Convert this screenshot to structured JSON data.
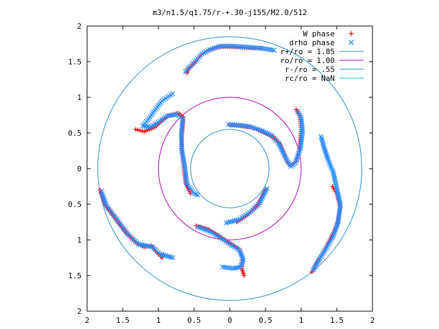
{
  "chart_data": {
    "type": "scatter",
    "title": "m3/n1.5/q1.75/r-+.30-j155/M2.0/512",
    "xlabel": "",
    "ylabel": "",
    "xlim": [
      -2,
      2
    ],
    "ylim": [
      -2,
      2
    ],
    "x_ticks": [
      -2,
      -1.5,
      -1,
      -0.5,
      0,
      0.5,
      1,
      1.5,
      2
    ],
    "y_ticks": [
      -2,
      -1.5,
      -1,
      -0.5,
      0,
      0.5,
      1,
      1.5,
      2
    ],
    "x_tick_labels": [
      "2",
      "1.5",
      "1",
      "0.5",
      "0",
      "0.5",
      "1",
      "1.5",
      "2"
    ],
    "y_tick_labels": [
      "2",
      "1.5",
      "1",
      "0.5",
      "0",
      "0.5",
      "1",
      "1.5",
      "2"
    ],
    "grid": false,
    "legend_position": "top-right",
    "series": [
      {
        "name": "W phase",
        "marker": "plus",
        "color": "#ff0000",
        "arms": [
          [
            [
              -0.6,
              1.34
            ],
            [
              -0.58,
              1.4
            ],
            [
              -0.48,
              1.5
            ],
            [
              -0.4,
              1.6
            ],
            [
              -0.3,
              1.66
            ],
            [
              -0.15,
              1.71
            ],
            [
              0.0,
              1.71
            ],
            [
              0.15,
              1.7
            ],
            [
              0.3,
              1.69
            ],
            [
              0.45,
              1.69
            ]
          ],
          [
            [
              -1.32,
              0.55
            ],
            [
              -1.2,
              0.52
            ],
            [
              -1.05,
              0.58
            ],
            [
              -0.95,
              0.68
            ],
            [
              -0.85,
              0.75
            ],
            [
              -0.72,
              0.78
            ],
            [
              -0.65,
              0.72
            ],
            [
              -0.67,
              0.5
            ],
            [
              -0.68,
              0.28
            ],
            [
              -0.65,
              0.05
            ],
            [
              -0.62,
              -0.2
            ],
            [
              -0.55,
              -0.35
            ]
          ],
          [
            [
              0.93,
              0.83
            ],
            [
              0.98,
              0.75
            ],
            [
              1.0,
              0.55
            ],
            [
              0.98,
              0.3
            ],
            [
              0.93,
              0.1
            ],
            [
              0.85,
              0.04
            ],
            [
              0.8,
              0.1
            ],
            [
              0.75,
              0.22
            ],
            [
              0.7,
              0.35
            ],
            [
              0.6,
              0.45
            ],
            [
              0.45,
              0.52
            ],
            [
              0.3,
              0.58
            ],
            [
              0.15,
              0.6
            ],
            [
              0.0,
              0.61
            ]
          ],
          [
            [
              -0.47,
              -0.8
            ],
            [
              -0.3,
              -0.85
            ],
            [
              -0.15,
              -0.95
            ],
            [
              0.0,
              -1.05
            ],
            [
              0.12,
              -1.12
            ],
            [
              0.17,
              -1.25
            ],
            [
              0.17,
              -1.4
            ],
            [
              0.2,
              -1.5
            ]
          ],
          [
            [
              -1.82,
              -0.3
            ],
            [
              -1.75,
              -0.5
            ],
            [
              -1.6,
              -0.7
            ],
            [
              -1.45,
              -0.9
            ],
            [
              -1.3,
              -1.05
            ],
            [
              -1.2,
              -1.1
            ],
            [
              -1.1,
              -1.08
            ],
            [
              -1.02,
              -1.18
            ],
            [
              -0.95,
              -1.25
            ],
            [
              -0.93,
              -1.2
            ]
          ],
          [
            [
              1.44,
              -0.25
            ],
            [
              1.5,
              -0.35
            ],
            [
              1.55,
              -0.55
            ],
            [
              1.5,
              -0.8
            ],
            [
              1.4,
              -1.0
            ],
            [
              1.3,
              -1.2
            ],
            [
              1.2,
              -1.35
            ],
            [
              1.15,
              -1.45
            ]
          ],
          [
            [
              0.5,
              -0.3
            ],
            [
              0.4,
              -0.5
            ],
            [
              0.25,
              -0.65
            ],
            [
              0.1,
              -0.75
            ]
          ]
        ]
      },
      {
        "name": "drho phase",
        "marker": "cross",
        "color": "#2a8cff",
        "arms": [
          [
            [
              -0.62,
              1.36
            ],
            [
              -0.57,
              1.42
            ],
            [
              -0.47,
              1.52
            ],
            [
              -0.39,
              1.61
            ],
            [
              -0.28,
              1.67
            ],
            [
              -0.13,
              1.72
            ],
            [
              0.02,
              1.72
            ],
            [
              0.17,
              1.71
            ],
            [
              0.32,
              1.7
            ],
            [
              0.5,
              1.68
            ],
            [
              0.62,
              1.66
            ]
          ],
          [
            [
              -0.8,
              1.05
            ],
            [
              -0.95,
              0.95
            ],
            [
              -1.05,
              0.82
            ],
            [
              -1.15,
              0.68
            ],
            [
              -1.22,
              0.6
            ],
            [
              -1.12,
              0.58
            ],
            [
              -1.0,
              0.65
            ],
            [
              -0.88,
              0.74
            ],
            [
              -0.74,
              0.76
            ],
            [
              -0.66,
              0.7
            ],
            [
              -0.68,
              0.48
            ],
            [
              -0.67,
              0.25
            ],
            [
              -0.63,
              0.02
            ],
            [
              -0.6,
              -0.22
            ],
            [
              -0.5,
              -0.35
            ],
            [
              -0.45,
              -0.37
            ]
          ],
          [
            [
              0.95,
              0.8
            ],
            [
              1.0,
              0.72
            ],
            [
              1.02,
              0.52
            ],
            [
              0.99,
              0.28
            ],
            [
              0.92,
              0.08
            ],
            [
              0.86,
              0.03
            ],
            [
              0.8,
              0.12
            ],
            [
              0.74,
              0.24
            ],
            [
              0.68,
              0.36
            ],
            [
              0.58,
              0.47
            ],
            [
              0.43,
              0.54
            ],
            [
              0.28,
              0.59
            ],
            [
              0.13,
              0.61
            ],
            [
              -0.02,
              0.62
            ]
          ],
          [
            [
              1.28,
              0.45
            ],
            [
              1.32,
              0.3
            ],
            [
              1.38,
              0.12
            ],
            [
              1.45,
              -0.05
            ],
            [
              1.5,
              -0.28
            ],
            [
              1.55,
              -0.5
            ],
            [
              1.52,
              -0.75
            ],
            [
              1.45,
              -0.95
            ],
            [
              1.35,
              -1.12
            ],
            [
              1.25,
              -1.28
            ],
            [
              1.17,
              -1.42
            ]
          ],
          [
            [
              -0.45,
              -0.82
            ],
            [
              -0.28,
              -0.88
            ],
            [
              -0.13,
              -0.97
            ],
            [
              0.02,
              -1.07
            ],
            [
              0.14,
              -1.15
            ],
            [
              0.19,
              -1.28
            ],
            [
              0.15,
              -1.38
            ],
            [
              0.05,
              -1.4
            ],
            [
              -0.1,
              -1.38
            ]
          ],
          [
            [
              -1.8,
              -0.32
            ],
            [
              -1.73,
              -0.52
            ],
            [
              -1.58,
              -0.72
            ],
            [
              -1.43,
              -0.92
            ],
            [
              -1.28,
              -1.06
            ],
            [
              -1.18,
              -1.08
            ],
            [
              -1.08,
              -1.1
            ],
            [
              -0.98,
              -1.2
            ],
            [
              -0.9,
              -1.22
            ],
            [
              -0.8,
              -1.25
            ]
          ],
          [
            [
              0.52,
              -0.28
            ],
            [
              0.42,
              -0.48
            ],
            [
              0.3,
              -0.6
            ],
            [
              0.12,
              -0.72
            ],
            [
              -0.05,
              -0.76
            ]
          ]
        ]
      },
      {
        "name": "r+/ro = 1.85",
        "type": "circle",
        "radius": 1.85,
        "color": "#2a8cc8"
      },
      {
        "name": "ro/ro = 1.00",
        "type": "circle",
        "radius": 1.0,
        "color": "#b000b0"
      },
      {
        "name": "r-/ro = .55",
        "type": "circle",
        "radius": 0.55,
        "color": "#2a8cc8"
      },
      {
        "name": "rc/ro = NaN",
        "type": "circle",
        "radius": null,
        "color": "#00c0c0"
      }
    ]
  }
}
